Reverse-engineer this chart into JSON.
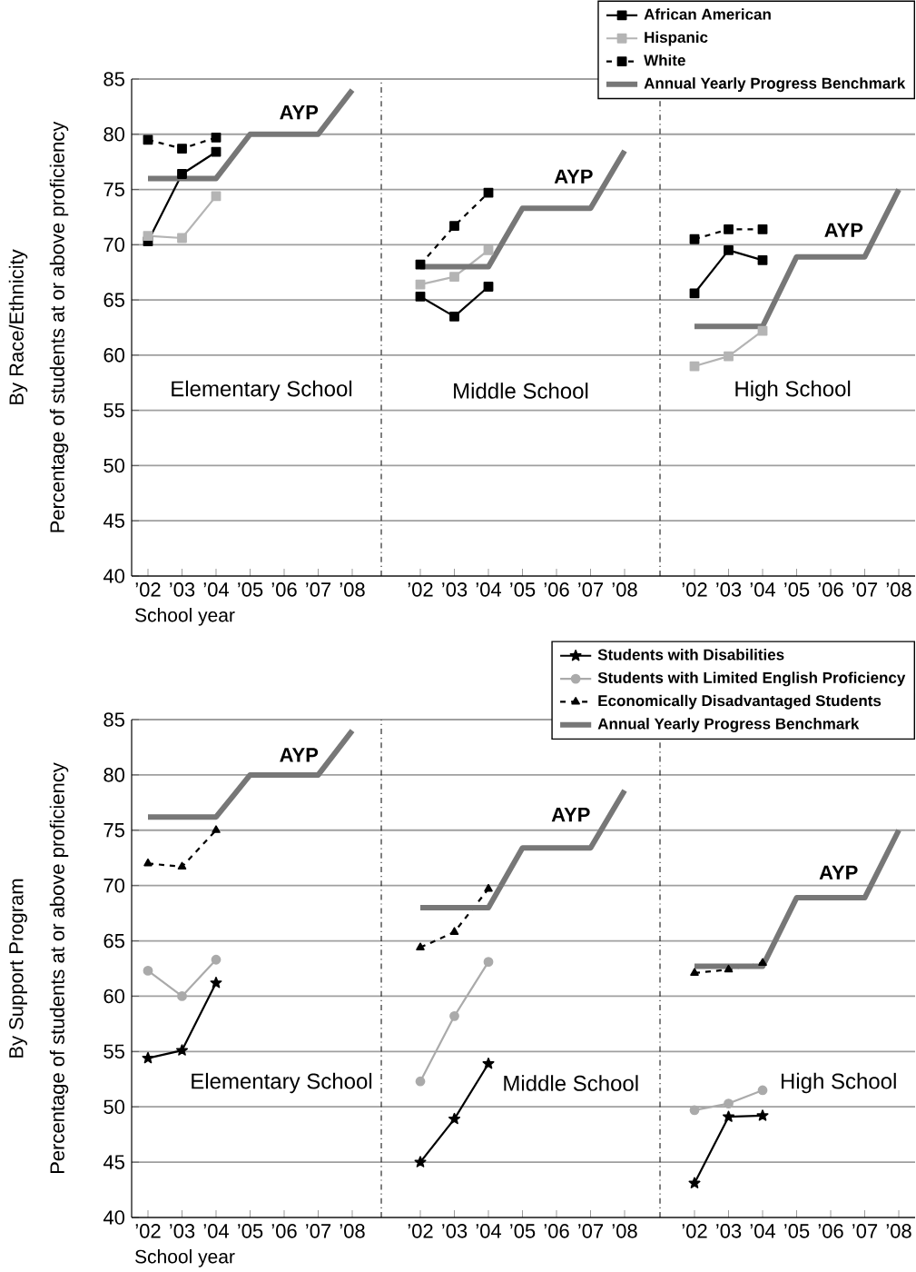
{
  "chart_data": [
    {
      "type": "line",
      "title": "Elementary School",
      "xlabel": "School year",
      "ylabel": "Percentage of students at or above proficiency",
      "categories": [
        "’02",
        "’03",
        "’04",
        "’05",
        "’06",
        "’07",
        "’08"
      ],
      "ylim": [
        40,
        85
      ],
      "yticks": [
        40,
        45,
        50,
        55,
        60,
        65,
        70,
        75,
        80,
        85
      ],
      "grid": "y",
      "annotations": [
        "By Race/Ethnicity",
        "AYP"
      ],
      "series": [
        {
          "color": "#000000",
          "marker": "square",
          "line_style": "solid",
          "values": [
            70.3,
            76.4,
            78.4,
            null,
            null,
            null,
            null
          ]
        },
        {
          "color": "#b4b4b4",
          "marker": "square",
          "line_style": "solid",
          "values": [
            70.8,
            70.6,
            74.4,
            null,
            null,
            null,
            null
          ]
        },
        {
          "color": "#000000",
          "marker": "square",
          "line_style": "dashed",
          "values": [
            79.5,
            78.7,
            79.7,
            null,
            null,
            null,
            null
          ]
        },
        {
          "color": "#777777",
          "marker": "none",
          "line_style": "solid",
          "values": [
            76,
            76,
            76,
            80,
            80,
            80,
            84
          ]
        }
      ]
    },
    {
      "type": "line",
      "title": "Middle School",
      "categories": [
        "’02",
        "’03",
        "’04",
        "’05",
        "’06",
        "’07",
        "’08"
      ],
      "ylim": [
        40,
        85
      ],
      "yticks": [
        40,
        45,
        50,
        55,
        60,
        65,
        70,
        75,
        80,
        85
      ],
      "grid": "y",
      "tick_labels": "x",
      "annotations": [
        "AYP"
      ],
      "series": [
        {
          "color": "#000000",
          "marker": "square",
          "line_style": "solid",
          "values": [
            65.3,
            63.5,
            66.2,
            null,
            null,
            null,
            null
          ]
        },
        {
          "color": "#b4b4b4",
          "marker": "square",
          "line_style": "solid",
          "values": [
            66.4,
            67.1,
            69.5,
            null,
            null,
            null,
            null
          ]
        },
        {
          "color": "#000000",
          "marker": "square",
          "line_style": "dashed",
          "values": [
            68.2,
            71.7,
            74.7,
            null,
            null,
            null,
            null
          ]
        },
        {
          "color": "#777777",
          "marker": "none",
          "line_style": "solid",
          "values": [
            68,
            68,
            68,
            73.3,
            73.3,
            73.3,
            78.5
          ]
        }
      ]
    },
    {
      "type": "line",
      "title": "High School",
      "categories": [
        "’02",
        "’03",
        "’04",
        "’05",
        "’06",
        "’07",
        "’08"
      ],
      "ylim": [
        40,
        85
      ],
      "yticks": [
        40,
        45,
        50,
        55,
        60,
        65,
        70,
        75,
        80,
        85
      ],
      "grid": "y",
      "tick_labels": "x",
      "legend": "top",
      "annotations": [
        "AYP"
      ],
      "series": [
        {
          "name": "African American",
          "color": "#000000",
          "marker": "square",
          "line_style": "solid",
          "values": [
            65.6,
            69.5,
            68.6,
            null,
            null,
            null,
            null
          ]
        },
        {
          "name": "Hispanic",
          "color": "#b4b4b4",
          "marker": "square",
          "line_style": "solid",
          "values": [
            59.0,
            59.9,
            62.2,
            null,
            null,
            null,
            null
          ]
        },
        {
          "name": "White",
          "color": "#000000",
          "marker": "square",
          "line_style": "dashed",
          "values": [
            70.5,
            71.4,
            71.4,
            null,
            null,
            null,
            null
          ]
        },
        {
          "name": "Annual Yearly Progress Benchmark",
          "color": "#777777",
          "marker": "none",
          "line_style": "solid",
          "values": [
            62.6,
            62.6,
            62.6,
            68.9,
            68.9,
            68.9,
            75
          ]
        }
      ]
    },
    {
      "type": "line",
      "title": "Elementary School",
      "xlabel": "School year",
      "ylabel": "Percentage of students at or above proficiency",
      "categories": [
        "’02",
        "’03",
        "’04",
        "’05",
        "’06",
        "’07",
        "’08"
      ],
      "ylim": [
        40,
        85
      ],
      "yticks": [
        40,
        45,
        50,
        55,
        60,
        65,
        70,
        75,
        80,
        85
      ],
      "grid": "y",
      "annotations": [
        "By Support Program",
        "AYP"
      ],
      "series": [
        {
          "color": "#000000",
          "marker": "star",
          "line_style": "solid",
          "values": [
            54.4,
            55.1,
            61.2,
            null,
            null,
            null,
            null
          ]
        },
        {
          "color": "#aaaaaa",
          "marker": "circle",
          "line_style": "solid",
          "values": [
            62.3,
            60.0,
            63.3,
            null,
            null,
            null,
            null
          ]
        },
        {
          "color": "#000000",
          "marker": "triangle",
          "line_style": "dashed",
          "values": [
            72.0,
            71.7,
            75.0,
            null,
            null,
            null,
            null
          ]
        },
        {
          "color": "#777777",
          "marker": "none",
          "line_style": "solid",
          "values": [
            76.2,
            76.2,
            76.2,
            80,
            80,
            80,
            84
          ]
        }
      ]
    },
    {
      "type": "line",
      "title": "Middle School",
      "categories": [
        "’02",
        "’03",
        "’04",
        "’05",
        "’06",
        "’07",
        "’08"
      ],
      "ylim": [
        40,
        85
      ],
      "yticks": [
        40,
        45,
        50,
        55,
        60,
        65,
        70,
        75,
        80,
        85
      ],
      "grid": "y",
      "tick_labels": "x",
      "annotations": [
        "AYP"
      ],
      "series": [
        {
          "color": "#000000",
          "marker": "star",
          "line_style": "solid",
          "values": [
            45.0,
            48.9,
            53.9,
            null,
            null,
            null,
            null
          ]
        },
        {
          "color": "#aaaaaa",
          "marker": "circle",
          "line_style": "solid",
          "values": [
            52.3,
            58.2,
            63.1,
            null,
            null,
            null,
            null
          ]
        },
        {
          "color": "#000000",
          "marker": "triangle",
          "line_style": "dashed",
          "values": [
            64.4,
            65.8,
            69.7,
            null,
            null,
            null,
            null
          ]
        },
        {
          "color": "#777777",
          "marker": "none",
          "line_style": "solid",
          "values": [
            68,
            68,
            68,
            73.4,
            73.4,
            73.4,
            78.6
          ]
        }
      ]
    },
    {
      "type": "line",
      "title": "High School",
      "categories": [
        "’02",
        "’03",
        "’04",
        "’05",
        "’06",
        "’07",
        "’08"
      ],
      "ylim": [
        40,
        85
      ],
      "yticks": [
        40,
        45,
        50,
        55,
        60,
        65,
        70,
        75,
        80,
        85
      ],
      "grid": "y",
      "tick_labels": "x",
      "legend": "top",
      "annotations": [
        "AYP"
      ],
      "series": [
        {
          "name": "Students with Disabilities",
          "color": "#000000",
          "marker": "star",
          "line_style": "solid",
          "values": [
            43.1,
            49.1,
            49.2,
            null,
            null,
            null,
            null
          ]
        },
        {
          "name": "Students with Limited English Proficiency",
          "color": "#aaaaaa",
          "marker": "circle",
          "line_style": "solid",
          "values": [
            49.7,
            50.3,
            51.5,
            null,
            null,
            null,
            null
          ]
        },
        {
          "name": "Economically Disadvantaged Students",
          "color": "#000000",
          "marker": "triangle",
          "line_style": "dashed",
          "values": [
            62.1,
            62.4,
            63.0,
            null,
            null,
            null,
            null
          ]
        },
        {
          "name": "Annual Yearly Progress Benchmark",
          "color": "#777777",
          "marker": "none",
          "line_style": "solid",
          "values": [
            62.7,
            62.7,
            62.7,
            68.9,
            68.9,
            68.9,
            75
          ]
        }
      ]
    }
  ]
}
